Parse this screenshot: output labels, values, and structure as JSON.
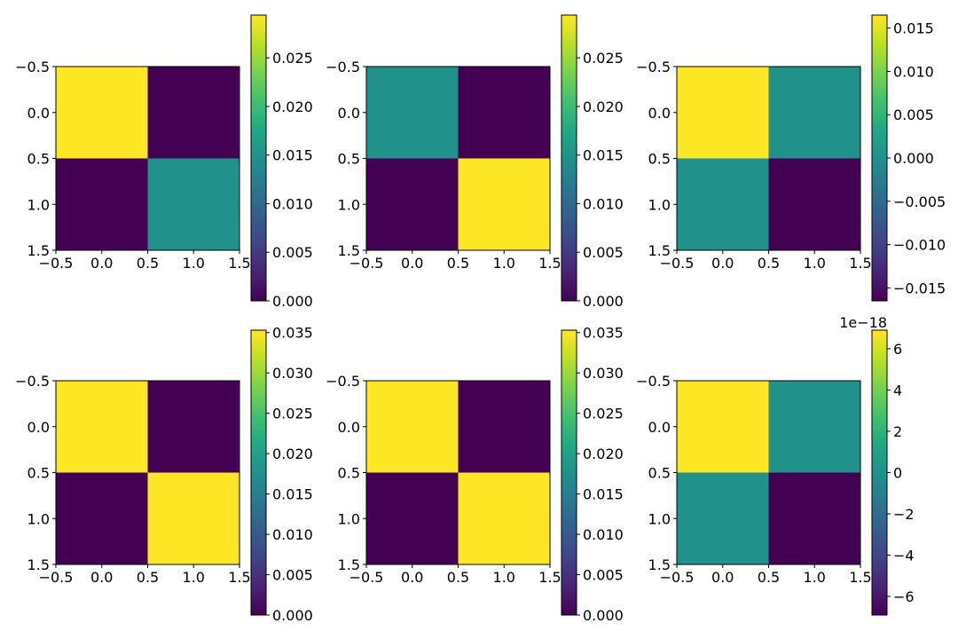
{
  "colormap": "viridis",
  "chart_data": [
    {
      "type": "heatmap",
      "panel": "row-1-col-1",
      "matrix": [
        [
          0.0294,
          0.0
        ],
        [
          0.0,
          0.0147
        ]
      ],
      "x_ticks": [
        "−0.5",
        "0.0",
        "0.5",
        "1.0",
        "1.5"
      ],
      "y_ticks": [
        "−0.5",
        "0.0",
        "0.5",
        "1.0",
        "1.5"
      ],
      "colorbar": {
        "range": [
          0.0,
          0.0294
        ],
        "ticks": [
          0.0,
          0.005,
          0.01,
          0.015,
          0.02,
          0.025
        ],
        "tick_labels": [
          "0.000",
          "0.005",
          "0.010",
          "0.015",
          "0.020",
          "0.025"
        ],
        "offset_label": ""
      }
    },
    {
      "type": "heatmap",
      "panel": "row-1-col-2",
      "matrix": [
        [
          0.0147,
          0.0
        ],
        [
          0.0,
          0.0294
        ]
      ],
      "x_ticks": [
        "−0.5",
        "0.0",
        "0.5",
        "1.0",
        "1.5"
      ],
      "y_ticks": [
        "−0.5",
        "0.0",
        "0.5",
        "1.0",
        "1.5"
      ],
      "colorbar": {
        "range": [
          0.0,
          0.0294
        ],
        "ticks": [
          0.0,
          0.005,
          0.01,
          0.015,
          0.02,
          0.025
        ],
        "tick_labels": [
          "0.000",
          "0.005",
          "0.010",
          "0.015",
          "0.020",
          "0.025"
        ],
        "offset_label": ""
      }
    },
    {
      "type": "heatmap",
      "panel": "row-1-col-3",
      "matrix": [
        [
          0.0165,
          0.0
        ],
        [
          0.0,
          -0.0165
        ]
      ],
      "x_ticks": [
        "−0.5",
        "0.0",
        "0.5",
        "1.0",
        "1.5"
      ],
      "y_ticks": [
        "−0.5",
        "0.0",
        "0.5",
        "1.0",
        "1.5"
      ],
      "colorbar": {
        "range": [
          -0.0165,
          0.0165
        ],
        "ticks": [
          -0.015,
          -0.01,
          -0.005,
          0.0,
          0.005,
          0.01,
          0.015
        ],
        "tick_labels": [
          "−0.015",
          "−0.010",
          "−0.005",
          "0.000",
          "0.005",
          "0.010",
          "0.015"
        ],
        "offset_label": ""
      }
    },
    {
      "type": "heatmap",
      "panel": "row-2-col-1",
      "matrix": [
        [
          0.0353,
          0.0
        ],
        [
          0.0,
          0.0353
        ]
      ],
      "x_ticks": [
        "−0.5",
        "0.0",
        "0.5",
        "1.0",
        "1.5"
      ],
      "y_ticks": [
        "−0.5",
        "0.0",
        "0.5",
        "1.0",
        "1.5"
      ],
      "colorbar": {
        "range": [
          0.0,
          0.0353
        ],
        "ticks": [
          0.0,
          0.005,
          0.01,
          0.015,
          0.02,
          0.025,
          0.03,
          0.035
        ],
        "tick_labels": [
          "0.000",
          "0.005",
          "0.010",
          "0.015",
          "0.020",
          "0.025",
          "0.030",
          "0.035"
        ],
        "offset_label": ""
      }
    },
    {
      "type": "heatmap",
      "panel": "row-2-col-2",
      "matrix": [
        [
          0.0353,
          0.0
        ],
        [
          0.0,
          0.0353
        ]
      ],
      "x_ticks": [
        "−0.5",
        "0.0",
        "0.5",
        "1.0",
        "1.5"
      ],
      "y_ticks": [
        "−0.5",
        "0.0",
        "0.5",
        "1.0",
        "1.5"
      ],
      "colorbar": {
        "range": [
          0.0,
          0.0353
        ],
        "ticks": [
          0.0,
          0.005,
          0.01,
          0.015,
          0.02,
          0.025,
          0.03,
          0.035
        ],
        "tick_labels": [
          "0.000",
          "0.005",
          "0.010",
          "0.015",
          "0.020",
          "0.025",
          "0.030",
          "0.035"
        ],
        "offset_label": ""
      }
    },
    {
      "type": "heatmap",
      "panel": "row-2-col-3",
      "matrix": [
        [
          6.9,
          0.0
        ],
        [
          0.0,
          -6.9
        ]
      ],
      "x_ticks": [
        "−0.5",
        "0.0",
        "0.5",
        "1.0",
        "1.5"
      ],
      "y_ticks": [
        "−0.5",
        "0.0",
        "0.5",
        "1.0",
        "1.5"
      ],
      "colorbar": {
        "range": [
          -6.9,
          6.9
        ],
        "ticks": [
          -6,
          -4,
          -2,
          0,
          2,
          4,
          6
        ],
        "tick_labels": [
          "−6",
          "−4",
          "−2",
          "0",
          "2",
          "4",
          "6"
        ],
        "offset_label": "1e−18"
      }
    }
  ]
}
